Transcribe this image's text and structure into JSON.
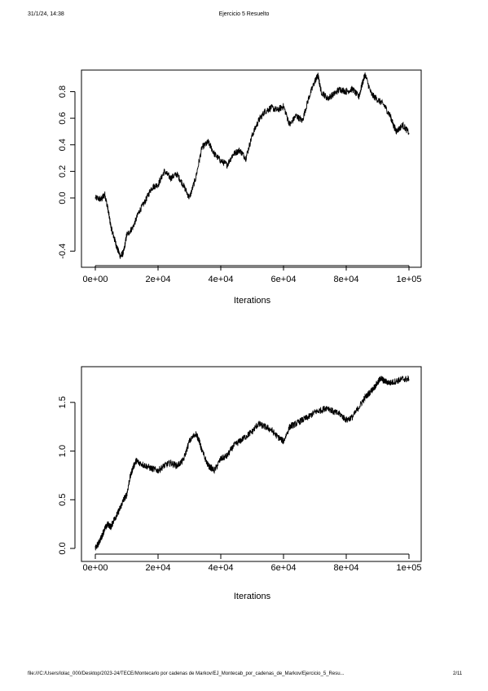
{
  "header": {
    "datetime": "31/1/24, 14:38",
    "title": "Ejercicio 5 Resuelto"
  },
  "footer": {
    "path": "file:///C:/Users/lolac_000/Desktop/2023-24/TECE/Montecarlo por cadenas de Markov/EJ_Montecab_por_cadenas_de_Markov/Ejercicio_5_Resu...",
    "page": "2/11"
  },
  "chart_data": [
    {
      "type": "line",
      "title": "",
      "xlabel": "Iterations",
      "ylabel": "",
      "xlim": [
        0,
        100000
      ],
      "ylim": [
        -0.46,
        0.95
      ],
      "x_ticks": [
        0,
        20000,
        40000,
        60000,
        80000,
        100000
      ],
      "x_tick_labels": [
        "0e+00",
        "2e+04",
        "4e+04",
        "6e+04",
        "8e+04",
        "1e+05"
      ],
      "y_ticks": [
        -0.4,
        0.0,
        0.2,
        0.4,
        0.6,
        0.8
      ],
      "y_tick_labels": [
        "-0.4",
        "0.0",
        "0.2",
        "0.4",
        "0.6",
        "0.8"
      ],
      "grid": false,
      "series_color": "#000000",
      "series": [
        {
          "x": [
            0,
            2000,
            3000,
            4000,
            5000,
            6000,
            7000,
            8000,
            9000,
            10000,
            12000,
            14000,
            16000,
            18000,
            20000,
            22000,
            24000,
            26000,
            28000,
            30000,
            32000,
            34000,
            36000,
            38000,
            40000,
            42000,
            44000,
            46000,
            48000,
            50000,
            52000,
            54000,
            56000,
            58000,
            60000,
            62000,
            64000,
            66000,
            68000,
            70000,
            71000,
            72000,
            74000,
            76000,
            78000,
            80000,
            82000,
            84000,
            85000,
            86000,
            88000,
            90000,
            92000,
            94000,
            95000,
            96000,
            98000,
            100000
          ],
          "y": [
            0.0,
            -0.01,
            0.03,
            -0.08,
            -0.22,
            -0.3,
            -0.38,
            -0.44,
            -0.41,
            -0.28,
            -0.22,
            -0.1,
            -0.02,
            0.08,
            0.1,
            0.2,
            0.15,
            0.18,
            0.1,
            0.0,
            0.15,
            0.38,
            0.42,
            0.33,
            0.28,
            0.25,
            0.33,
            0.36,
            0.3,
            0.47,
            0.58,
            0.65,
            0.68,
            0.66,
            0.69,
            0.55,
            0.62,
            0.58,
            0.75,
            0.88,
            0.92,
            0.8,
            0.75,
            0.78,
            0.82,
            0.8,
            0.82,
            0.76,
            0.85,
            0.93,
            0.78,
            0.74,
            0.7,
            0.62,
            0.55,
            0.5,
            0.55,
            0.49
          ]
        }
      ]
    },
    {
      "type": "line",
      "title": "",
      "xlabel": "Iterations",
      "ylabel": "",
      "xlim": [
        0,
        100000
      ],
      "ylim": [
        -0.05,
        1.85
      ],
      "x_ticks": [
        0,
        20000,
        40000,
        60000,
        80000,
        100000
      ],
      "x_tick_labels": [
        "0e+00",
        "2e+04",
        "4e+04",
        "6e+04",
        "8e+04",
        "1e+05"
      ],
      "y_ticks": [
        0.0,
        0.5,
        1.0,
        1.5
      ],
      "y_tick_labels": [
        "0.0",
        "0.5",
        "1.0",
        "1.5"
      ],
      "grid": false,
      "series_color": "#000000",
      "series": [
        {
          "x": [
            0,
            1000,
            2000,
            3000,
            4000,
            5000,
            6000,
            7000,
            8000,
            9000,
            10000,
            11000,
            12000,
            13000,
            14000,
            16000,
            18000,
            20000,
            22000,
            24000,
            26000,
            28000,
            30000,
            32000,
            33000,
            34000,
            36000,
            38000,
            40000,
            42000,
            44000,
            46000,
            48000,
            50000,
            52000,
            54000,
            56000,
            58000,
            60000,
            62000,
            64000,
            66000,
            68000,
            70000,
            72000,
            74000,
            76000,
            78000,
            80000,
            82000,
            84000,
            86000,
            88000,
            90000,
            91000,
            92000,
            94000,
            96000,
            98000,
            100000
          ],
          "y": [
            0.0,
            0.05,
            0.12,
            0.2,
            0.25,
            0.22,
            0.3,
            0.35,
            0.42,
            0.5,
            0.55,
            0.72,
            0.83,
            0.9,
            0.88,
            0.85,
            0.82,
            0.8,
            0.85,
            0.88,
            0.85,
            0.9,
            1.1,
            1.18,
            1.12,
            1.0,
            0.85,
            0.8,
            0.92,
            0.95,
            1.05,
            1.1,
            1.15,
            1.2,
            1.28,
            1.25,
            1.22,
            1.15,
            1.1,
            1.25,
            1.28,
            1.32,
            1.35,
            1.4,
            1.42,
            1.45,
            1.4,
            1.38,
            1.32,
            1.35,
            1.45,
            1.55,
            1.62,
            1.7,
            1.75,
            1.72,
            1.7,
            1.72,
            1.74,
            1.74
          ]
        }
      ]
    }
  ]
}
